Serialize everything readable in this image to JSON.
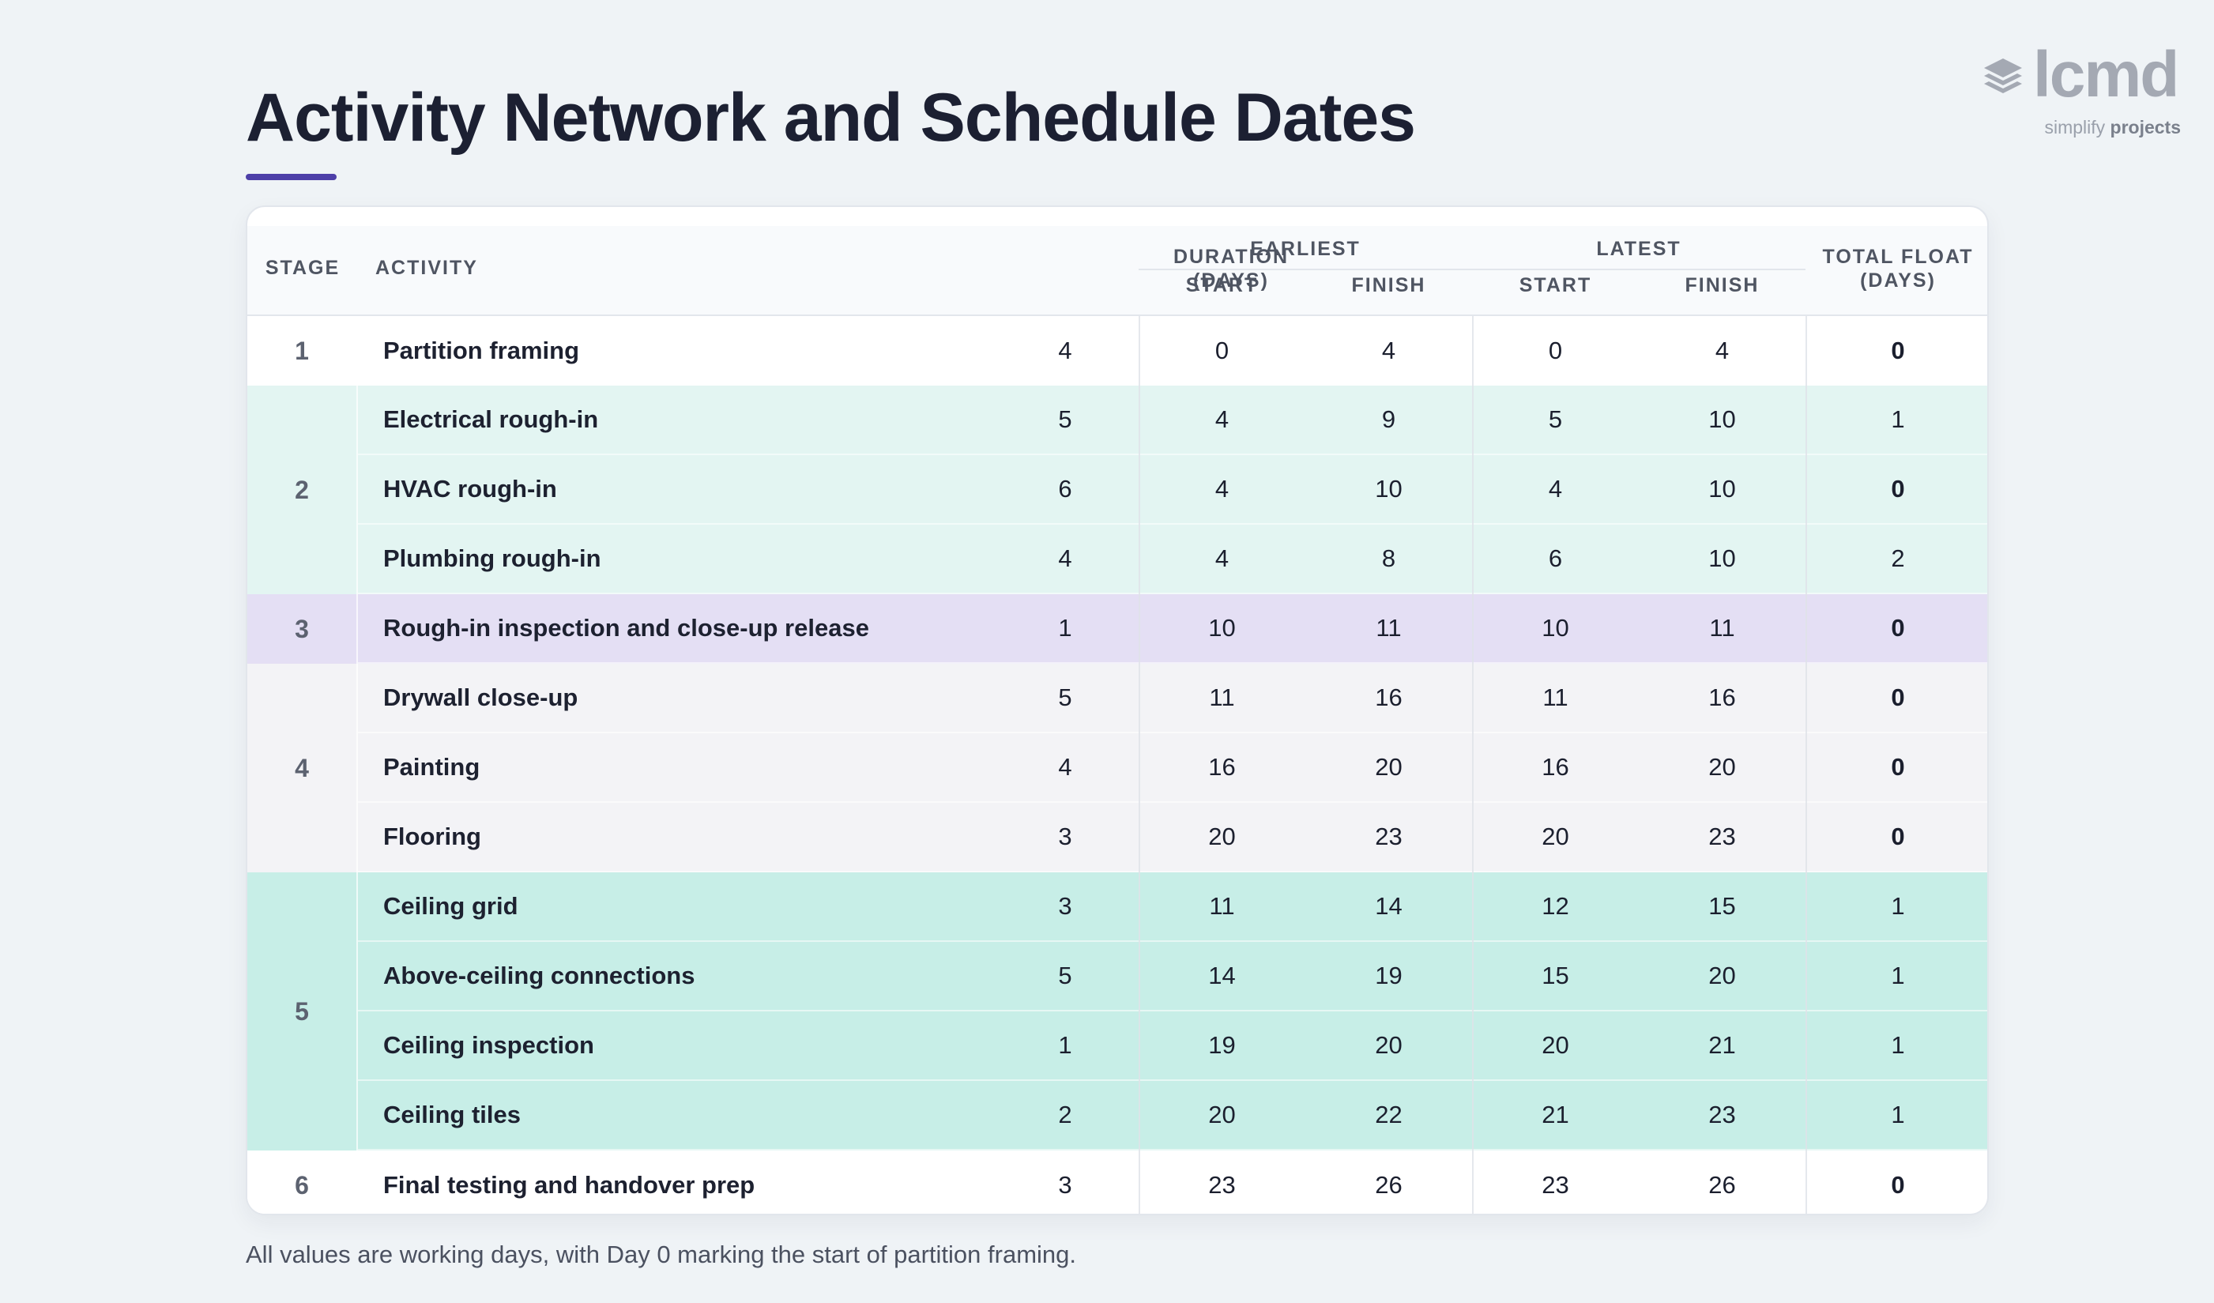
{
  "logo": {
    "wordmark": "lcmd",
    "tagline_light": "simplify",
    "tagline_bold": "projects"
  },
  "title": "Activity Network and Schedule Dates",
  "colors": {
    "accent": "#4d3fa8",
    "stage_1": "#ffffff",
    "stage_2": "#e3f5f2",
    "stage_3": "#e4dff4",
    "stage_4": "#f3f3f6",
    "stage_5": "#c7eee7",
    "stage_6": "#ffffff"
  },
  "table": {
    "headers": {
      "stage": "STAGE",
      "activity": "ACTIVITY",
      "duration": [
        "DURATION",
        "(DAYS)"
      ],
      "earliest": "EARLIEST",
      "latest": "LATEST",
      "start": "START",
      "finish": "FINISH",
      "total_float": [
        "TOTAL FLOAT",
        "(DAYS)"
      ]
    },
    "stages": [
      {
        "stage": "1",
        "color": "#ffffff",
        "rows": [
          {
            "activity": "Partition framing",
            "duration": "4",
            "es": "0",
            "ef": "4",
            "ls": "0",
            "lf": "4",
            "float": "0"
          }
        ]
      },
      {
        "stage": "2",
        "color": "#e3f5f2",
        "rows": [
          {
            "activity": "Electrical rough-in",
            "duration": "5",
            "es": "4",
            "ef": "9",
            "ls": "5",
            "lf": "10",
            "float": "1"
          },
          {
            "activity": "HVAC rough-in",
            "duration": "6",
            "es": "4",
            "ef": "10",
            "ls": "4",
            "lf": "10",
            "float": "0"
          },
          {
            "activity": "Plumbing rough-in",
            "duration": "4",
            "es": "4",
            "ef": "8",
            "ls": "6",
            "lf": "10",
            "float": "2"
          }
        ]
      },
      {
        "stage": "3",
        "color": "#e4dff4",
        "rows": [
          {
            "activity": "Rough-in inspection and close-up release",
            "duration": "1",
            "es": "10",
            "ef": "11",
            "ls": "10",
            "lf": "11",
            "float": "0"
          }
        ]
      },
      {
        "stage": "4",
        "color": "#f3f3f6",
        "rows": [
          {
            "activity": "Drywall close-up",
            "duration": "5",
            "es": "11",
            "ef": "16",
            "ls": "11",
            "lf": "16",
            "float": "0"
          },
          {
            "activity": "Painting",
            "duration": "4",
            "es": "16",
            "ef": "20",
            "ls": "16",
            "lf": "20",
            "float": "0"
          },
          {
            "activity": "Flooring",
            "duration": "3",
            "es": "20",
            "ef": "23",
            "ls": "20",
            "lf": "23",
            "float": "0"
          }
        ]
      },
      {
        "stage": "5",
        "color": "#c7eee7",
        "rows": [
          {
            "activity": "Ceiling grid",
            "duration": "3",
            "es": "11",
            "ef": "14",
            "ls": "12",
            "lf": "15",
            "float": "1"
          },
          {
            "activity": "Above-ceiling connections",
            "duration": "5",
            "es": "14",
            "ef": "19",
            "ls": "15",
            "lf": "20",
            "float": "1"
          },
          {
            "activity": "Ceiling inspection",
            "duration": "1",
            "es": "19",
            "ef": "20",
            "ls": "20",
            "lf": "21",
            "float": "1"
          },
          {
            "activity": "Ceiling tiles",
            "duration": "2",
            "es": "20",
            "ef": "22",
            "ls": "21",
            "lf": "23",
            "float": "1"
          }
        ]
      },
      {
        "stage": "6",
        "color": "#ffffff",
        "rows": [
          {
            "activity": "Final testing and handover prep",
            "duration": "3",
            "es": "23",
            "ef": "26",
            "ls": "23",
            "lf": "26",
            "float": "0"
          }
        ]
      }
    ]
  },
  "footnote": "All values are working days, with Day 0 marking the start of partition framing."
}
